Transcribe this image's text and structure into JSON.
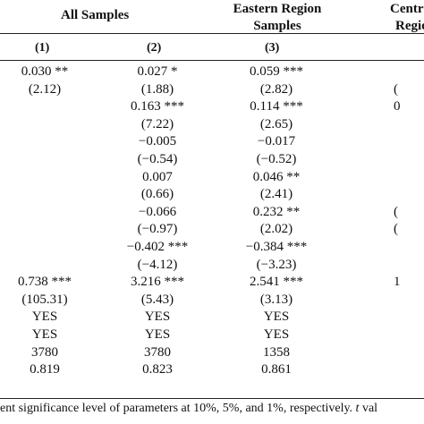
{
  "headers": {
    "all_samples": "All Samples",
    "eastern_line1": "Eastern Region",
    "eastern_line2": "Samples",
    "central_line1": "Centra",
    "central_line2": "Regio",
    "col1": "(1)",
    "col2": "(2)",
    "col3": "(3)"
  },
  "rows": [
    {
      "c1": "0.030 **",
      "c2": "0.027 *",
      "c3": "0.059 ***",
      "c4": ""
    },
    {
      "c1": "(2.12)",
      "c2": "(1.88)",
      "c3": "(2.82)",
      "c4": "("
    },
    {
      "c1": "",
      "c2": "0.163 ***",
      "c3": "0.114 ***",
      "c4": "0"
    },
    {
      "c1": "",
      "c2": "(7.22)",
      "c3": "(2.65)",
      "c4": ""
    },
    {
      "c1": "",
      "c2": "−0.005",
      "c3": "−0.017",
      "c4": ""
    },
    {
      "c1": "",
      "c2": "(−0.54)",
      "c3": "(−0.52)",
      "c4": ""
    },
    {
      "c1": "",
      "c2": "0.007",
      "c3": "0.046 **",
      "c4": ""
    },
    {
      "c1": "",
      "c2": "(0.66)",
      "c3": "(2.41)",
      "c4": ""
    },
    {
      "c1": "",
      "c2": "−0.066",
      "c3": "0.232 **",
      "c4": "("
    },
    {
      "c1": "",
      "c2": "(−0.97)",
      "c3": "(2.02)",
      "c4": "("
    },
    {
      "c1": "",
      "c2": "−0.402 ***",
      "c3": "−0.384 ***",
      "c4": ""
    },
    {
      "c1": "",
      "c2": "(−4.12)",
      "c3": "(−3.23)",
      "c4": ""
    },
    {
      "c1": "0.738 ***",
      "c2": "3.216 ***",
      "c3": "2.541 ***",
      "c4": "1"
    },
    {
      "c1": "(105.31)",
      "c2": "(5.43)",
      "c3": "(3.13)",
      "c4": ""
    },
    {
      "c1": "YES",
      "c2": "YES",
      "c3": "YES",
      "c4": ""
    },
    {
      "c1": "YES",
      "c2": "YES",
      "c3": "YES",
      "c4": ""
    },
    {
      "c1": "3780",
      "c2": "3780",
      "c3": "1358",
      "c4": ""
    },
    {
      "c1": "0.819",
      "c2": "0.823",
      "c3": "0.861",
      "c4": ""
    }
  ],
  "footnote": {
    "text": "ent significance level of parameters at 10%, 5%, and 1%, respectively.",
    "t_italic": "t",
    "tail": "val"
  }
}
